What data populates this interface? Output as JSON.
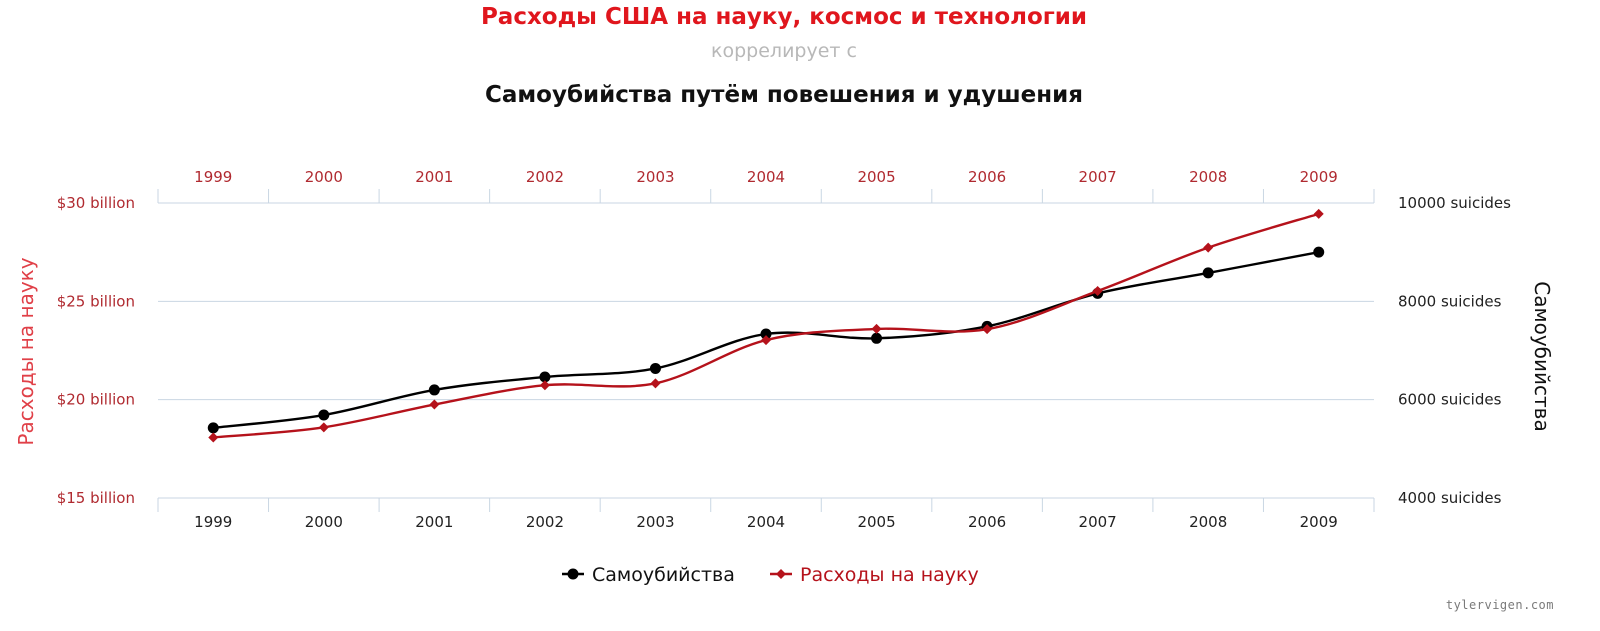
{
  "header": {
    "title": "Расходы США на науку, космос и технологии",
    "connector": "коррелирует с",
    "subtitle": "Самоубийства путём повешения и удушения"
  },
  "watermark": "tylervigen.com",
  "colors": {
    "spending": "#b5121b",
    "suicides": "#000000",
    "spending_axis_text": "#b02a30",
    "grid": "#c9d6e3"
  },
  "chart_data": {
    "type": "line",
    "x": [
      1999,
      2000,
      2001,
      2002,
      2003,
      2004,
      2005,
      2006,
      2007,
      2008,
      2009
    ],
    "x_tick_labels": [
      "1999",
      "2000",
      "2001",
      "2002",
      "2003",
      "2004",
      "2005",
      "2006",
      "2007",
      "2008",
      "2009"
    ],
    "y_left": {
      "label": "Расходы на науку",
      "ylim": [
        15,
        30
      ],
      "ticks": [
        15,
        20,
        25,
        30
      ],
      "tick_labels": [
        "$15 billion",
        "$20 billion",
        "$25 billion",
        "$30 billion"
      ]
    },
    "y_right": {
      "label": "Самоубийства",
      "ylim": [
        4000,
        10000
      ],
      "ticks": [
        4000,
        6000,
        8000,
        10000
      ],
      "tick_labels": [
        "4000 suicides",
        "6000 suicides",
        "8000 suicides",
        "10000 suicides"
      ]
    },
    "series": [
      {
        "name": "Самоубийства",
        "axis": "right",
        "marker": "circle",
        "color": "#000000",
        "values": [
          5427,
          5688,
          6198,
          6462,
          6635,
          7336,
          7248,
          7491,
          8161,
          8578,
          9000
        ]
      },
      {
        "name": "Расходы на науку",
        "axis": "left",
        "marker": "diamond",
        "color": "#b5121b",
        "values": [
          18.079,
          18.594,
          19.753,
          20.734,
          20.831,
          23.029,
          23.597,
          23.584,
          25.525,
          27.731,
          29.449
        ]
      }
    ],
    "legend": {
      "position": "bottom-center",
      "items": [
        "Самоубийства",
        "Расходы на науку"
      ]
    },
    "grid": true
  }
}
